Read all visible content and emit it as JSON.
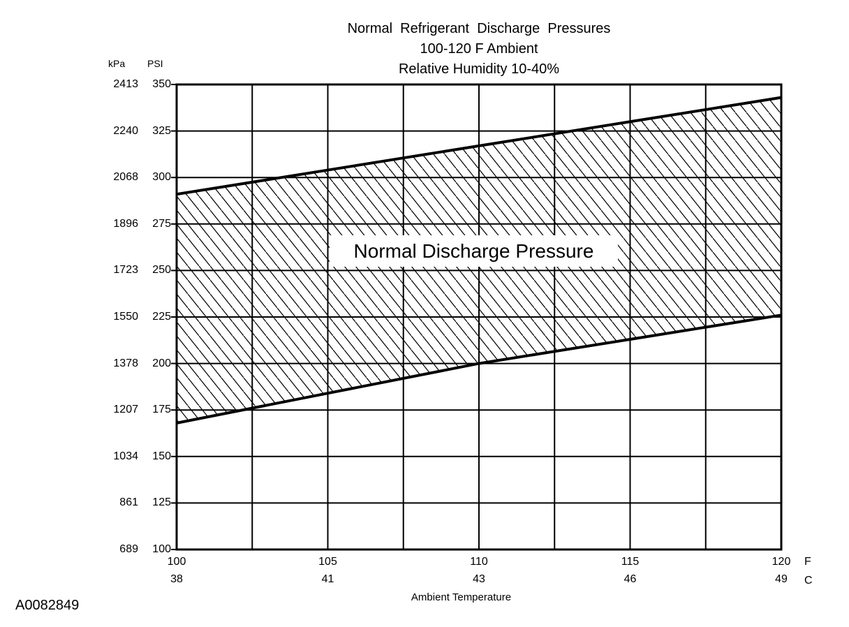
{
  "figure": {
    "id": "A0082849"
  },
  "title": {
    "line1": "Normal  Refrigerant  Discharge  Pressures",
    "line2": "100-120 F Ambient",
    "line3": "Relative Humidity 10-40%"
  },
  "y_axis": {
    "unit_primary": "kPa",
    "unit_secondary": "PSI",
    "ticks": [
      {
        "kpa": "2413",
        "psi": 350
      },
      {
        "kpa": "2240",
        "psi": 325
      },
      {
        "kpa": "2068",
        "psi": 300
      },
      {
        "kpa": "1896",
        "psi": 275
      },
      {
        "kpa": "1723",
        "psi": 250
      },
      {
        "kpa": "1550",
        "psi": 225
      },
      {
        "kpa": "1378",
        "psi": 200
      },
      {
        "kpa": "1207",
        "psi": 175
      },
      {
        "kpa": "1034",
        "psi": 150
      },
      {
        "kpa": "861",
        "psi": 125
      },
      {
        "kpa": "689",
        "psi": 100
      }
    ]
  },
  "x_axis": {
    "label": "Ambient Temperature",
    "unit_primary": "F",
    "unit_secondary": "C",
    "ticks": [
      {
        "f": 100,
        "c": 38
      },
      {
        "f": 105,
        "c": 41
      },
      {
        "f": 110,
        "c": 43
      },
      {
        "f": 115,
        "c": 46
      },
      {
        "f": 120,
        "c": 49
      }
    ]
  },
  "chart_data": {
    "type": "area",
    "title": "Normal Refrigerant Discharge Pressures",
    "subtitle1": "100-120 F Ambient",
    "subtitle2": "Relative Humidity 10-40%",
    "band_label": "Normal Discharge Pressure",
    "xlabel": "Ambient Temperature",
    "x_units": [
      "F",
      "C"
    ],
    "y_units": [
      "kPa",
      "PSI"
    ],
    "x": [
      100,
      105,
      110,
      115,
      120
    ],
    "x_celsius": [
      38,
      41,
      43,
      46,
      49
    ],
    "series": [
      {
        "name": "upper_limit_psi",
        "values": [
          291,
          304,
          317,
          330,
          343
        ]
      },
      {
        "name": "lower_limit_psi",
        "values": [
          168,
          184,
          200,
          213,
          226
        ]
      }
    ],
    "xlim": [
      100,
      120
    ],
    "ylim": [
      100,
      350
    ],
    "x_gridline_step": 2.5,
    "y_gridline_step": 25,
    "grid": true,
    "fill_style": "diagonal-hatch",
    "legend_position": "none",
    "colors": {
      "foreground": "#000000",
      "background": "#ffffff"
    }
  }
}
